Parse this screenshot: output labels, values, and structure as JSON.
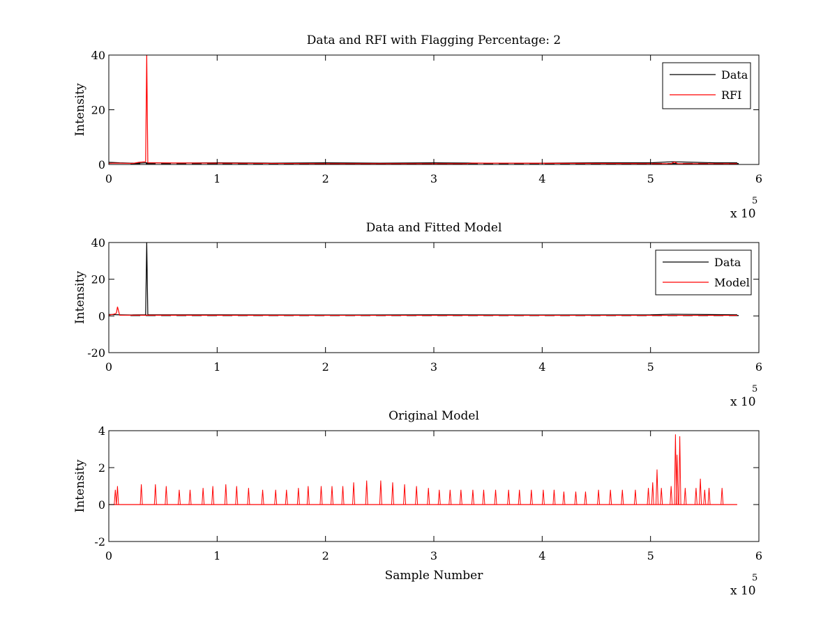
{
  "chart_data": [
    {
      "type": "line",
      "title": "Data and RFI with Flagging Percentage: 2",
      "xlabel": "",
      "ylabel": "Intensity",
      "xlim": [
        0,
        600000
      ],
      "ylim": [
        0,
        40
      ],
      "x_ticks": [
        "0",
        "1",
        "2",
        "3",
        "4",
        "5",
        "6"
      ],
      "y_ticks": [
        "0",
        "20",
        "40"
      ],
      "x_exponent_base": "x 10",
      "x_exponent_power": "5",
      "grid": false,
      "legend_position": "top-right",
      "legend": [
        "Data",
        "RFI"
      ],
      "series": [
        {
          "name": "Data",
          "color": "#000000",
          "x": [
            0,
            10000,
            20000,
            30000,
            34000,
            40000,
            60000,
            100000,
            150000,
            200000,
            250000,
            300000,
            350000,
            400000,
            450000,
            500000,
            520000,
            540000,
            560000,
            580000
          ],
          "y": [
            0.8,
            0.6,
            0.5,
            0.5,
            0.6,
            0.6,
            0.5,
            0.6,
            0.5,
            0.6,
            0.5,
            0.6,
            0.5,
            0.5,
            0.6,
            0.6,
            1.0,
            0.8,
            0.6,
            0.6
          ]
        },
        {
          "name": "RFI",
          "color": "#ff0000",
          "x": [
            0,
            5000,
            22000,
            28000,
            34000,
            35000,
            36000,
            200000,
            330000,
            335000,
            519000,
            522000,
            525000,
            580000
          ],
          "y": [
            0.4,
            0.5,
            0.4,
            0.8,
            1.0,
            40,
            0.6,
            0.3,
            0.3,
            0.5,
            0.3,
            0.9,
            0.3,
            0.3
          ]
        }
      ]
    },
    {
      "type": "line",
      "title": "Data and Fitted Model",
      "xlabel": "",
      "ylabel": "Intensity",
      "xlim": [
        0,
        600000
      ],
      "ylim": [
        -20,
        40
      ],
      "x_ticks": [
        "0",
        "1",
        "2",
        "3",
        "4",
        "5",
        "6"
      ],
      "y_ticks": [
        "-20",
        "0",
        "20",
        "40"
      ],
      "x_exponent_base": "x 10",
      "x_exponent_power": "5",
      "grid": false,
      "legend_position": "top-right",
      "legend": [
        "Data",
        "Model"
      ],
      "series": [
        {
          "name": "Data",
          "color": "#000000",
          "x": [
            0,
            10000,
            20000,
            34000,
            35000,
            36000,
            100000,
            200000,
            300000,
            400000,
            500000,
            520000,
            580000
          ],
          "y": [
            0.8,
            0.6,
            0.5,
            0.6,
            40,
            0.6,
            0.6,
            0.5,
            0.6,
            0.5,
            0.6,
            0.9,
            0.6
          ],
          "flag_band": [
            22000,
            35000
          ]
        },
        {
          "name": "Model",
          "color": "#ff0000",
          "x": [
            0,
            5000,
            7000,
            8000,
            10000,
            200000,
            580000
          ],
          "y": [
            0.4,
            1.0,
            1.5,
            5.0,
            0.4,
            0.3,
            0.3
          ]
        }
      ]
    },
    {
      "type": "line",
      "title": "Original Model",
      "xlabel": "Sample Number",
      "ylabel": "Intensity",
      "xlim": [
        0,
        600000
      ],
      "ylim": [
        -2,
        4
      ],
      "x_ticks": [
        "0",
        "1",
        "2",
        "3",
        "4",
        "5",
        "6"
      ],
      "y_ticks": [
        "-2",
        "0",
        "2",
        "4"
      ],
      "x_exponent_base": "x 10",
      "x_exponent_power": "5",
      "grid": false,
      "legend_position": "none",
      "series": [
        {
          "name": "",
          "color": "#ff0000",
          "baseline": 0,
          "x_end": 580000,
          "peaks": [
            {
              "x": 6000,
              "y": 0.8
            },
            {
              "x": 8000,
              "y": 1.0
            },
            {
              "x": 30000,
              "y": 1.1
            },
            {
              "x": 43000,
              "y": 1.1
            },
            {
              "x": 53000,
              "y": 1.0
            },
            {
              "x": 65000,
              "y": 0.8
            },
            {
              "x": 75000,
              "y": 0.8
            },
            {
              "x": 87000,
              "y": 0.9
            },
            {
              "x": 96000,
              "y": 1.0
            },
            {
              "x": 108000,
              "y": 1.1
            },
            {
              "x": 118000,
              "y": 1.0
            },
            {
              "x": 129000,
              "y": 0.9
            },
            {
              "x": 142000,
              "y": 0.8
            },
            {
              "x": 154000,
              "y": 0.8
            },
            {
              "x": 164000,
              "y": 0.8
            },
            {
              "x": 175000,
              "y": 0.9
            },
            {
              "x": 184000,
              "y": 1.0
            },
            {
              "x": 196000,
              "y": 1.0
            },
            {
              "x": 206000,
              "y": 1.0
            },
            {
              "x": 216000,
              "y": 1.0
            },
            {
              "x": 226000,
              "y": 1.2
            },
            {
              "x": 238000,
              "y": 1.3
            },
            {
              "x": 251000,
              "y": 1.3
            },
            {
              "x": 262000,
              "y": 1.2
            },
            {
              "x": 273000,
              "y": 1.1
            },
            {
              "x": 284000,
              "y": 1.0
            },
            {
              "x": 295000,
              "y": 0.9
            },
            {
              "x": 305000,
              "y": 0.8
            },
            {
              "x": 315000,
              "y": 0.8
            },
            {
              "x": 325000,
              "y": 0.8
            },
            {
              "x": 336000,
              "y": 0.8
            },
            {
              "x": 346000,
              "y": 0.8
            },
            {
              "x": 357000,
              "y": 0.8
            },
            {
              "x": 369000,
              "y": 0.8
            },
            {
              "x": 379000,
              "y": 0.8
            },
            {
              "x": 390000,
              "y": 0.8
            },
            {
              "x": 401000,
              "y": 0.8
            },
            {
              "x": 411000,
              "y": 0.8
            },
            {
              "x": 420000,
              "y": 0.7
            },
            {
              "x": 431000,
              "y": 0.7
            },
            {
              "x": 440000,
              "y": 0.7
            },
            {
              "x": 452000,
              "y": 0.8
            },
            {
              "x": 463000,
              "y": 0.8
            },
            {
              "x": 474000,
              "y": 0.8
            },
            {
              "x": 486000,
              "y": 0.8
            },
            {
              "x": 498000,
              "y": 0.9
            },
            {
              "x": 502000,
              "y": 1.2
            },
            {
              "x": 506000,
              "y": 1.9
            },
            {
              "x": 510000,
              "y": 0.9
            },
            {
              "x": 519000,
              "y": 1.0
            },
            {
              "x": 523000,
              "y": 3.8
            },
            {
              "x": 524500,
              "y": 2.7
            },
            {
              "x": 527000,
              "y": 3.7
            },
            {
              "x": 532000,
              "y": 0.9
            },
            {
              "x": 542000,
              "y": 0.9
            },
            {
              "x": 546000,
              "y": 1.4
            },
            {
              "x": 550000,
              "y": 0.8
            },
            {
              "x": 554000,
              "y": 0.9
            },
            {
              "x": 566000,
              "y": 0.9
            }
          ]
        }
      ]
    }
  ]
}
